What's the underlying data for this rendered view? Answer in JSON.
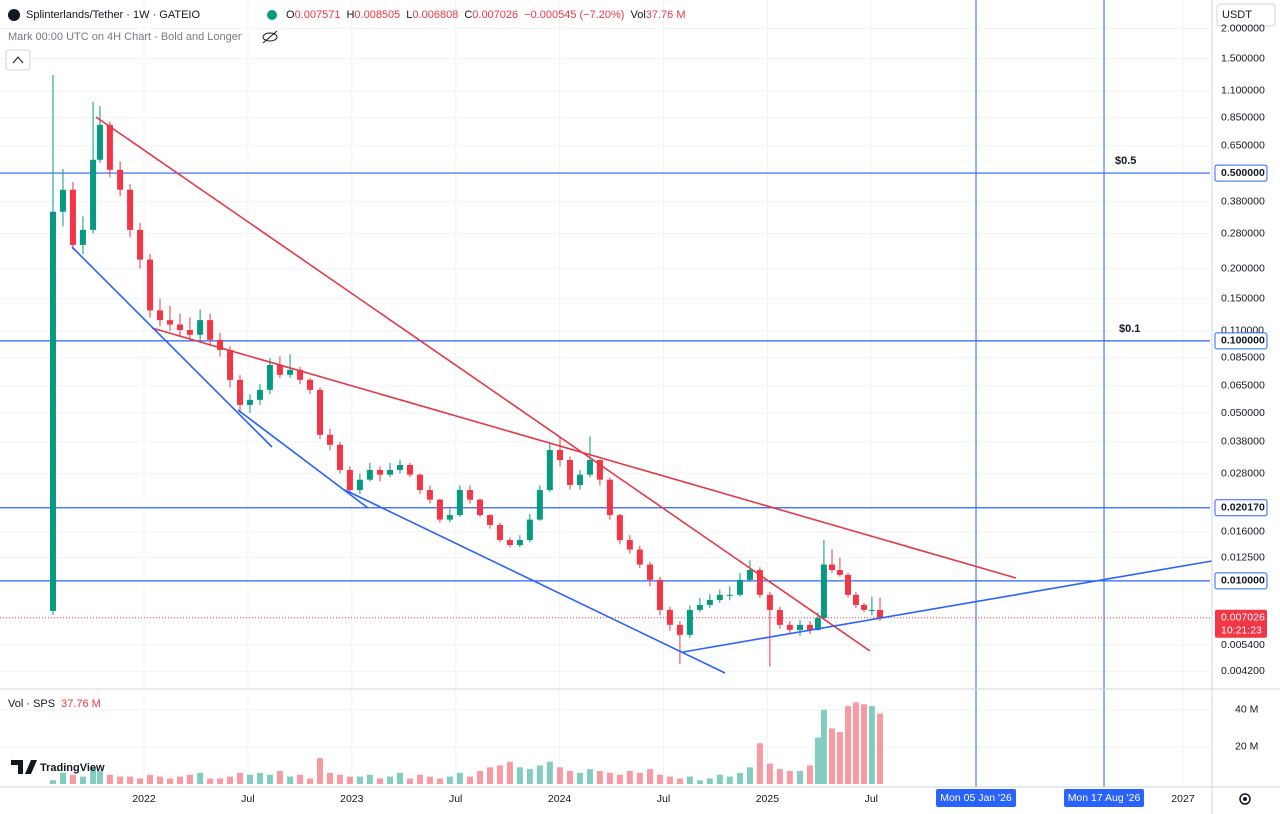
{
  "header": {
    "title": "Splinterlands/Tether · 1W · GATEIO",
    "ohlc_letters": [
      "O",
      "H",
      "L",
      "C"
    ],
    "change_label": "−0.000545 (−7.20%)",
    "volume_label": "Vol",
    "volume_value": "37.76 M",
    "subtitle": "Mark 00:00 UTC on 4H Chart - Bold and Longer",
    "currency": "USDT",
    "volume_pane_title": "Vol · SPS",
    "logo": "TradingView"
  },
  "chart_data": {
    "type": "candlestick",
    "log_scale": true,
    "grid": true,
    "colors": {
      "up": "#089981",
      "down": "#f23645",
      "line": "#2962ff"
    },
    "xlim": [
      2021.307,
      2027.13
    ],
    "xticks": [
      2022,
      {
        "value": 2022.5,
        "label": "Jul"
      },
      2023,
      {
        "value": 2023.5,
        "label": "Jul"
      },
      2024,
      {
        "value": 2024.5,
        "label": "Jul"
      },
      2025,
      {
        "value": 2025.5,
        "label": "Jul"
      },
      2027
    ],
    "ylim": [
      0.00358,
      2.63
    ],
    "yticks": [
      {
        "value": 2,
        "label": "2.000000"
      },
      {
        "value": 1.5,
        "label": "1.500000"
      },
      {
        "value": 1.1,
        "label": "1.100000"
      },
      {
        "value": 0.85,
        "label": "0.850000"
      },
      {
        "value": 0.65,
        "label": "0.650000"
      },
      {
        "value": 0.38,
        "label": "0.380000"
      },
      {
        "value": 0.28,
        "label": "0.280000"
      },
      {
        "value": 0.2,
        "label": "0.200000"
      },
      {
        "value": 0.15,
        "label": "0.150000"
      },
      {
        "value": 0.11,
        "label": "0.110000"
      },
      {
        "value": 0.085,
        "label": "0.085000"
      },
      {
        "value": 0.065,
        "label": "0.065000"
      },
      {
        "value": 0.05,
        "label": "0.050000"
      },
      {
        "value": 0.038,
        "label": "0.038000"
      },
      {
        "value": 0.028,
        "label": "0.028000"
      },
      {
        "value": 0.016,
        "label": "0.016000"
      },
      {
        "value": 0.0125,
        "label": "0.012500"
      },
      {
        "value": 0.0054,
        "label": "0.005400"
      },
      {
        "value": 0.0042,
        "label": "0.004200"
      }
    ],
    "horizontal_lines": [
      {
        "value": 0.5,
        "label": "0.500000"
      },
      {
        "value": 0.1,
        "label": "0.100000"
      },
      {
        "value": 0.02017,
        "label": "0.020170"
      },
      {
        "value": 0.01,
        "label": "0.010000"
      }
    ],
    "annotations": [
      {
        "text": "$0.5",
        "value": 0.5
      },
      {
        "text": "$0.1",
        "value": 0.1
      }
    ],
    "vertical_lines": [
      {
        "value": 2026.004,
        "label": "Mon 05 Jan '26"
      },
      {
        "value": 2026.62,
        "label": "Mon 17 Aug '26"
      }
    ],
    "last_price": {
      "value": 0.007026,
      "label": "0.007026"
    },
    "countdown": "10:21:23",
    "vlim": [
      0,
      48
    ],
    "vticks": [
      {
        "value": 40,
        "label": "40 M"
      },
      {
        "value": 20,
        "label": "20 M"
      }
    ],
    "x": [
      2021.562,
      2021.61,
      2021.658,
      2021.706,
      2021.755,
      2021.788,
      2021.836,
      2021.885,
      2021.933,
      2021.981,
      2022.029,
      2022.077,
      2022.125,
      2022.173,
      2022.221,
      2022.27,
      2022.318,
      2022.366,
      2022.414,
      2022.462,
      2022.51,
      2022.558,
      2022.606,
      2022.654,
      2022.703,
      2022.751,
      2022.799,
      2022.847,
      2022.895,
      2022.943,
      2022.991,
      2023.039,
      2023.087,
      2023.136,
      2023.184,
      2023.232,
      2023.28,
      2023.328,
      2023.376,
      2023.424,
      2023.472,
      2023.52,
      2023.569,
      2023.617,
      2023.665,
      2023.713,
      2023.761,
      2023.809,
      2023.857,
      2023.905,
      2023.953,
      2024.002,
      2024.05,
      2024.098,
      2024.146,
      2024.194,
      2024.242,
      2024.29,
      2024.338,
      2024.386,
      2024.435,
      2024.483,
      2024.531,
      2024.579,
      2024.627,
      2024.675,
      2024.723,
      2024.771,
      2024.819,
      2024.868,
      2024.916,
      2024.964,
      2025.012,
      2025.06,
      2025.108,
      2025.157,
      2025.205,
      2025.243,
      2025.272,
      2025.311,
      2025.349,
      2025.388,
      2025.426,
      2025.465,
      2025.503,
      2025.542
    ],
    "values": [
      [
        0.0075,
        1.28,
        0.0072,
        0.345
      ],
      [
        0.345,
        0.52,
        0.3,
        0.426
      ],
      [
        0.426,
        0.46,
        0.24,
        0.251
      ],
      [
        0.251,
        0.33,
        0.23,
        0.29
      ],
      [
        0.29,
        0.99,
        0.28,
        0.568
      ],
      [
        0.568,
        0.95,
        0.55,
        0.794
      ],
      [
        0.794,
        0.82,
        0.48,
        0.516
      ],
      [
        0.516,
        0.56,
        0.4,
        0.426
      ],
      [
        0.426,
        0.45,
        0.27,
        0.29
      ],
      [
        0.29,
        0.31,
        0.2,
        0.218
      ],
      [
        0.218,
        0.23,
        0.125,
        0.134
      ],
      [
        0.134,
        0.15,
        0.115,
        0.122
      ],
      [
        0.122,
        0.14,
        0.11,
        0.117
      ],
      [
        0.117,
        0.13,
        0.105,
        0.111
      ],
      [
        0.111,
        0.125,
        0.1,
        0.106
      ],
      [
        0.106,
        0.135,
        0.1,
        0.122
      ],
      [
        0.122,
        0.13,
        0.095,
        0.101
      ],
      [
        0.101,
        0.108,
        0.086,
        0.0917
      ],
      [
        0.0917,
        0.095,
        0.064,
        0.0688
      ],
      [
        0.0688,
        0.072,
        0.05,
        0.0541
      ],
      [
        0.0541,
        0.06,
        0.05,
        0.0568
      ],
      [
        0.0568,
        0.066,
        0.054,
        0.0625
      ],
      [
        0.0625,
        0.085,
        0.06,
        0.0794
      ],
      [
        0.0794,
        0.086,
        0.07,
        0.0722
      ],
      [
        0.0722,
        0.088,
        0.07,
        0.0757
      ],
      [
        0.0757,
        0.078,
        0.066,
        0.0688
      ],
      [
        0.0688,
        0.07,
        0.06,
        0.0625
      ],
      [
        0.0625,
        0.064,
        0.039,
        0.0406
      ],
      [
        0.0406,
        0.043,
        0.035,
        0.0369
      ],
      [
        0.0369,
        0.038,
        0.028,
        0.029
      ],
      [
        0.029,
        0.03,
        0.023,
        0.0239
      ],
      [
        0.0239,
        0.028,
        0.023,
        0.0264
      ],
      [
        0.0264,
        0.031,
        0.026,
        0.029
      ],
      [
        0.029,
        0.03,
        0.026,
        0.0277
      ],
      [
        0.0277,
        0.031,
        0.027,
        0.029
      ],
      [
        0.029,
        0.032,
        0.028,
        0.0304
      ],
      [
        0.0304,
        0.031,
        0.027,
        0.0277
      ],
      [
        0.0277,
        0.028,
        0.023,
        0.0239
      ],
      [
        0.0239,
        0.025,
        0.021,
        0.0218
      ],
      [
        0.0218,
        0.022,
        0.0175,
        0.018
      ],
      [
        0.018,
        0.02,
        0.0175,
        0.0188
      ],
      [
        0.0188,
        0.025,
        0.0185,
        0.0239
      ],
      [
        0.0239,
        0.025,
        0.021,
        0.0218
      ],
      [
        0.0218,
        0.022,
        0.0185,
        0.0188
      ],
      [
        0.0188,
        0.019,
        0.0165,
        0.0171
      ],
      [
        0.0171,
        0.0175,
        0.0145,
        0.0148
      ],
      [
        0.0148,
        0.0152,
        0.0138,
        0.0141
      ],
      [
        0.0141,
        0.0155,
        0.0138,
        0.0148
      ],
      [
        0.0148,
        0.019,
        0.0145,
        0.018
      ],
      [
        0.018,
        0.025,
        0.0178,
        0.0239
      ],
      [
        0.0239,
        0.038,
        0.0235,
        0.0351
      ],
      [
        0.0351,
        0.04,
        0.03,
        0.0319
      ],
      [
        0.0319,
        0.033,
        0.024,
        0.0251
      ],
      [
        0.0251,
        0.029,
        0.024,
        0.0277
      ],
      [
        0.0277,
        0.04,
        0.027,
        0.0319
      ],
      [
        0.0319,
        0.032,
        0.025,
        0.0264
      ],
      [
        0.0264,
        0.027,
        0.018,
        0.0188
      ],
      [
        0.0188,
        0.019,
        0.0142,
        0.0148
      ],
      [
        0.0148,
        0.0155,
        0.013,
        0.0135
      ],
      [
        0.0135,
        0.014,
        0.0113,
        0.0117
      ],
      [
        0.0117,
        0.012,
        0.0095,
        0.0101
      ],
      [
        0.0101,
        0.0104,
        0.0072,
        0.00757
      ],
      [
        0.00757,
        0.0078,
        0.0062,
        0.00656
      ],
      [
        0.00656,
        0.0068,
        0.0045,
        0.00596
      ],
      [
        0.00596,
        0.0079,
        0.0058,
        0.00757
      ],
      [
        0.00757,
        0.0085,
        0.0074,
        0.00794
      ],
      [
        0.00794,
        0.0088,
        0.0077,
        0.00833
      ],
      [
        0.00833,
        0.0092,
        0.0081,
        0.00875
      ],
      [
        0.00875,
        0.0095,
        0.0083,
        0.00875
      ],
      [
        0.00875,
        0.0108,
        0.0086,
        0.0101
      ],
      [
        0.0101,
        0.0122,
        0.0099,
        0.0111
      ],
      [
        0.0111,
        0.0114,
        0.0085,
        0.00875
      ],
      [
        0.00875,
        0.009,
        0.0044,
        0.00757
      ],
      [
        0.00757,
        0.0078,
        0.0063,
        0.00656
      ],
      [
        0.00656,
        0.0068,
        0.006,
        0.00625
      ],
      [
        0.00625,
        0.0069,
        0.0059,
        0.00656
      ],
      [
        0.00656,
        0.0068,
        0.006,
        0.00625
      ],
      [
        0.00625,
        0.0074,
        0.0062,
        0.007
      ],
      [
        0.007,
        0.0148,
        0.0069,
        0.0117
      ],
      [
        0.0117,
        0.0135,
        0.0108,
        0.0111
      ],
      [
        0.0111,
        0.0125,
        0.0104,
        0.0106
      ],
      [
        0.0106,
        0.0108,
        0.0085,
        0.00875
      ],
      [
        0.00875,
        0.009,
        0.0077,
        0.00794
      ],
      [
        0.00794,
        0.0081,
        0.0074,
        0.00757
      ],
      [
        0.00757,
        0.0086,
        0.0072,
        0.00757
      ],
      [
        0.007571,
        0.008505,
        0.006808,
        0.007026
      ]
    ],
    "volumes": [
      2,
      6,
      5,
      4,
      9,
      7,
      5,
      4,
      4,
      3,
      5,
      4,
      3,
      4,
      5,
      6,
      3,
      3,
      4,
      6,
      5,
      6,
      5,
      7,
      4,
      5,
      3,
      14,
      6,
      5,
      4,
      4,
      5,
      3,
      4,
      6,
      3,
      5,
      4,
      3,
      4,
      6,
      4,
      7,
      9,
      10,
      12,
      9,
      8,
      10,
      12,
      9,
      7,
      6,
      8,
      7,
      6,
      5,
      7,
      6,
      8,
      5,
      4,
      3,
      4,
      2,
      3,
      5,
      4,
      6,
      9,
      22,
      11,
      8,
      7,
      7,
      10,
      25,
      40,
      30,
      28,
      42,
      44,
      43,
      42,
      38
    ]
  }
}
